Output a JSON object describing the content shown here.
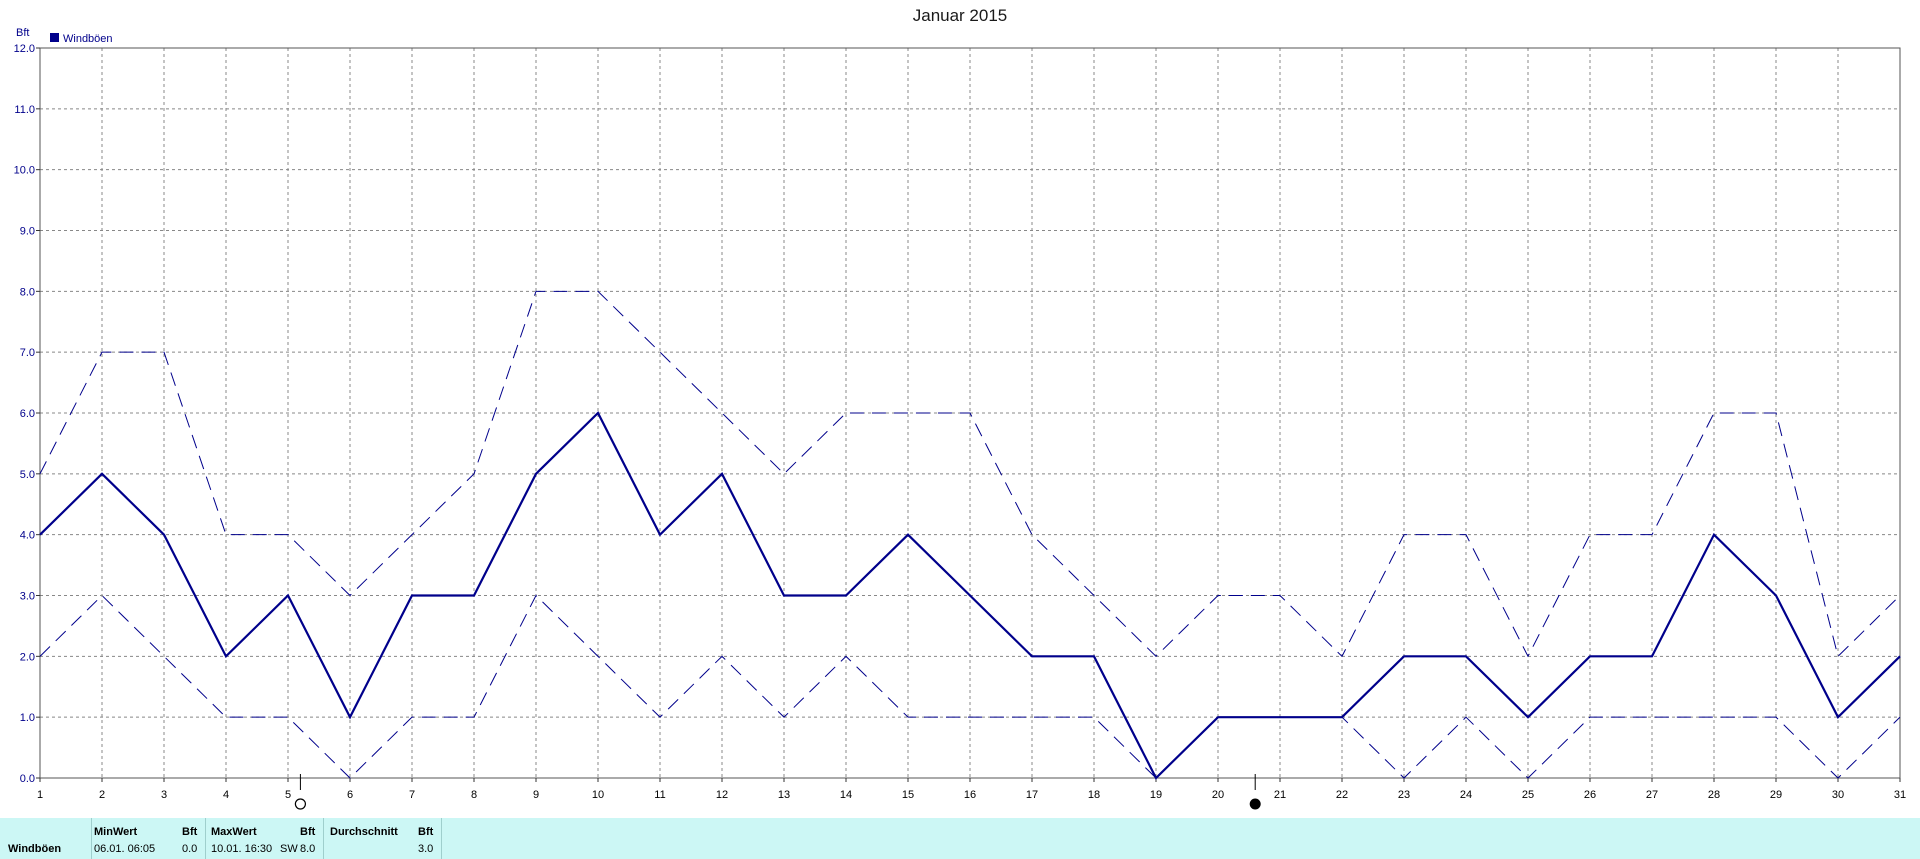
{
  "chart_data": {
    "type": "line",
    "title": "Januar 2015",
    "ylabel": "Bft",
    "ylim": [
      0,
      12
    ],
    "yticks": [
      "0.0",
      "1.0",
      "2.0",
      "3.0",
      "4.0",
      "5.0",
      "6.0",
      "7.0",
      "8.0",
      "9.0",
      "10.0",
      "11.0",
      "12.0"
    ],
    "x": [
      1,
      2,
      3,
      4,
      5,
      6,
      7,
      8,
      9,
      10,
      11,
      12,
      13,
      14,
      15,
      16,
      17,
      18,
      19,
      20,
      21,
      22,
      23,
      24,
      25,
      26,
      27,
      28,
      29,
      30,
      31
    ],
    "legend": [
      "Windböen"
    ],
    "legend_placement": "top-left",
    "grid": true,
    "series": [
      {
        "name": "Windböen",
        "style": "solid",
        "values": [
          4,
          5,
          4,
          2,
          3,
          1,
          3,
          3,
          5,
          6,
          4,
          5,
          3,
          3,
          4,
          3,
          2,
          2,
          0,
          1,
          1,
          1,
          2,
          2,
          1,
          2,
          2,
          4,
          3,
          1,
          2
        ]
      },
      {
        "style": "dashed",
        "values": [
          5,
          7,
          7,
          4,
          4,
          3,
          4,
          5,
          8,
          8,
          7,
          6,
          5,
          6,
          6,
          6,
          4,
          3,
          2,
          3,
          3,
          2,
          4,
          4,
          2,
          4,
          4,
          6,
          6,
          2,
          3
        ]
      },
      {
        "style": "dashed",
        "values": [
          2,
          3,
          2,
          1,
          1,
          0,
          1,
          1,
          3,
          2,
          1,
          2,
          1,
          2,
          1,
          1,
          1,
          1,
          0,
          1,
          1,
          1,
          0,
          1,
          0,
          1,
          1,
          1,
          1,
          0,
          1
        ]
      }
    ],
    "moon_markers": [
      {
        "x": 5.2,
        "phase": "full-moon-icon"
      },
      {
        "x": 20.6,
        "phase": "new-moon-icon"
      }
    ],
    "colors": {
      "line": "#00008b",
      "grid": "#888888"
    }
  },
  "stats": {
    "row_label": "Windböen",
    "min": {
      "header": "MinWert",
      "unit": "Bft",
      "date": "06.01.  06:05",
      "value": "0.0"
    },
    "max": {
      "header": "MaxWert",
      "unit": "Bft",
      "date": "10.01.  16:30",
      "dir": "SW",
      "value": "8.0"
    },
    "avg": {
      "header": "Durchschnitt",
      "unit": "Bft",
      "value": "3.0"
    }
  }
}
